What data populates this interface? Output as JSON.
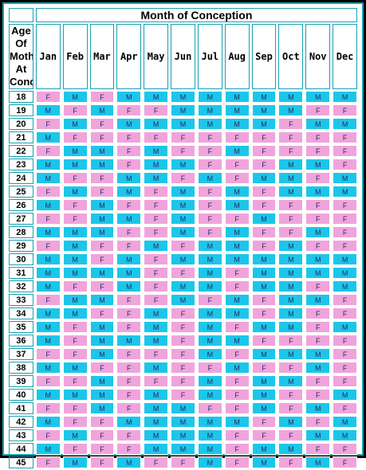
{
  "header": {
    "title": "Month of Conception",
    "age_label_lines": [
      "Age Of",
      "Mother At",
      "Conception"
    ]
  },
  "months": [
    "Jan",
    "Feb",
    "Mar",
    "Apr",
    "May",
    "Jun",
    "Jul",
    "Aug",
    "Sep",
    "Oct",
    "Nov",
    "Dec"
  ],
  "colors": {
    "M": "#1cc6ea",
    "F": "#f0a4dc",
    "border": "#18a0b0"
  },
  "rows": [
    {
      "age": "18",
      "values": [
        "F",
        "M",
        "F",
        "M",
        "M",
        "M",
        "M",
        "M",
        "M",
        "M",
        "M",
        "M"
      ]
    },
    {
      "age": "19",
      "values": [
        "M",
        "F",
        "M",
        "F",
        "F",
        "M",
        "M",
        "M",
        "M",
        "M",
        "F",
        "F"
      ]
    },
    {
      "age": "20",
      "values": [
        "F",
        "M",
        "F",
        "M",
        "M",
        "M",
        "M",
        "M",
        "M",
        "F",
        "M",
        "M"
      ]
    },
    {
      "age": "21",
      "values": [
        "M",
        "F",
        "F",
        "F",
        "F",
        "F",
        "F",
        "F",
        "F",
        "F",
        "F",
        "F"
      ]
    },
    {
      "age": "22",
      "values": [
        "F",
        "M",
        "M",
        "F",
        "M",
        "F",
        "F",
        "M",
        "F",
        "F",
        "F",
        "F"
      ]
    },
    {
      "age": "23",
      "values": [
        "M",
        "M",
        "M",
        "F",
        "M",
        "M",
        "F",
        "F",
        "F",
        "M",
        "M",
        "F"
      ]
    },
    {
      "age": "24",
      "values": [
        "M",
        "F",
        "F",
        "M",
        "M",
        "F",
        "M",
        "F",
        "M",
        "M",
        "F",
        "M"
      ]
    },
    {
      "age": "25",
      "values": [
        "F",
        "M",
        "F",
        "M",
        "F",
        "M",
        "F",
        "M",
        "F",
        "M",
        "M",
        "M"
      ]
    },
    {
      "age": "26",
      "values": [
        "M",
        "F",
        "M",
        "F",
        "F",
        "M",
        "F",
        "M",
        "F",
        "F",
        "F",
        "F"
      ]
    },
    {
      "age": "27",
      "values": [
        "F",
        "F",
        "M",
        "M",
        "F",
        "M",
        "F",
        "F",
        "M",
        "F",
        "F",
        "F"
      ]
    },
    {
      "age": "28",
      "values": [
        "M",
        "M",
        "M",
        "F",
        "F",
        "M",
        "F",
        "M",
        "F",
        "F",
        "M",
        "F"
      ]
    },
    {
      "age": "29",
      "values": [
        "F",
        "M",
        "F",
        "F",
        "M",
        "F",
        "M",
        "M",
        "F",
        "M",
        "F",
        "F"
      ]
    },
    {
      "age": "30",
      "values": [
        "M",
        "M",
        "F",
        "M",
        "F",
        "M",
        "M",
        "M",
        "M",
        "M",
        "M",
        "M"
      ]
    },
    {
      "age": "31",
      "values": [
        "M",
        "M",
        "M",
        "M",
        "F",
        "F",
        "M",
        "F",
        "M",
        "M",
        "M",
        "M"
      ]
    },
    {
      "age": "32",
      "values": [
        "M",
        "F",
        "F",
        "M",
        "F",
        "M",
        "M",
        "F",
        "M",
        "M",
        "F",
        "M"
      ]
    },
    {
      "age": "33",
      "values": [
        "F",
        "M",
        "M",
        "F",
        "F",
        "M",
        "F",
        "M",
        "F",
        "M",
        "M",
        "F"
      ]
    },
    {
      "age": "34",
      "values": [
        "M",
        "M",
        "F",
        "F",
        "M",
        "F",
        "M",
        "M",
        "F",
        "M",
        "F",
        "F"
      ]
    },
    {
      "age": "35",
      "values": [
        "M",
        "F",
        "M",
        "F",
        "M",
        "F",
        "M",
        "F",
        "M",
        "M",
        "F",
        "M"
      ]
    },
    {
      "age": "36",
      "values": [
        "M",
        "F",
        "M",
        "M",
        "M",
        "F",
        "M",
        "M",
        "F",
        "F",
        "F",
        "F"
      ]
    },
    {
      "age": "37",
      "values": [
        "F",
        "F",
        "M",
        "F",
        "F",
        "F",
        "M",
        "F",
        "M",
        "M",
        "M",
        "F"
      ]
    },
    {
      "age": "38",
      "values": [
        "M",
        "M",
        "F",
        "F",
        "M",
        "F",
        "F",
        "M",
        "F",
        "F",
        "M",
        "F"
      ]
    },
    {
      "age": "39",
      "values": [
        "F",
        "F",
        "M",
        "F",
        "F",
        "F",
        "M",
        "F",
        "M",
        "M",
        "F",
        "F"
      ]
    },
    {
      "age": "40",
      "values": [
        "M",
        "M",
        "M",
        "F",
        "M",
        "F",
        "M",
        "F",
        "M",
        "F",
        "F",
        "M"
      ]
    },
    {
      "age": "41",
      "values": [
        "F",
        "F",
        "M",
        "F",
        "M",
        "M",
        "F",
        "F",
        "M",
        "F",
        "M",
        "F"
      ]
    },
    {
      "age": "42",
      "values": [
        "M",
        "F",
        "F",
        "M",
        "M",
        "M",
        "M",
        "M",
        "F",
        "M",
        "F",
        "M"
      ]
    },
    {
      "age": "43",
      "values": [
        "F",
        "M",
        "F",
        "F",
        "M",
        "M",
        "M",
        "F",
        "F",
        "F",
        "M",
        "M"
      ]
    },
    {
      "age": "44",
      "values": [
        "M",
        "F",
        "F",
        "F",
        "M",
        "M",
        "M",
        "F",
        "M",
        "M",
        "F",
        "F"
      ]
    },
    {
      "age": "45",
      "values": [
        "F",
        "M",
        "F",
        "M",
        "F",
        "F",
        "M",
        "F",
        "M",
        "F",
        "M",
        "F"
      ]
    }
  ]
}
